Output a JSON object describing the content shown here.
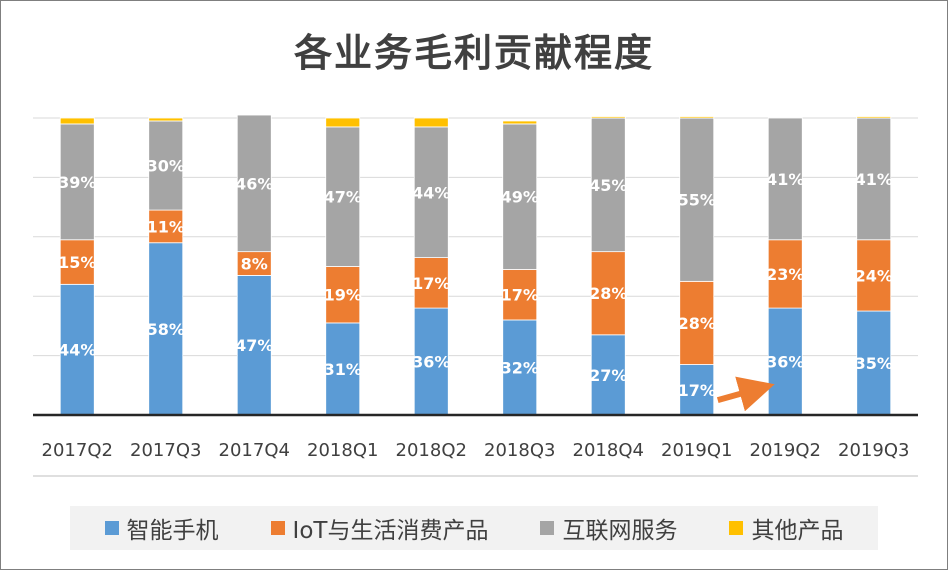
{
  "chart_data": {
    "type": "bar",
    "stacked": true,
    "title": "各业务毛利贡献程度",
    "xlabel": "",
    "ylabel": "",
    "ylim": [
      0,
      100
    ],
    "grid": true,
    "legend_position": "bottom",
    "categories": [
      "2017Q2",
      "2017Q3",
      "2017Q4",
      "2018Q1",
      "2018Q2",
      "2018Q3",
      "2018Q4",
      "2019Q1",
      "2019Q2",
      "2019Q3"
    ],
    "series": [
      {
        "name": "智能手机",
        "color": "#5b9bd5",
        "values": [
          44,
          58,
          47,
          31,
          36,
          32,
          27,
          17,
          36,
          35
        ],
        "labels": [
          "44%",
          "58%",
          "47%",
          "31%",
          "36%",
          "32%",
          "27%",
          "17%",
          "36%",
          "35%"
        ]
      },
      {
        "name": "IoT与生活消费产品",
        "color": "#ed7d31",
        "values": [
          15,
          11,
          8,
          19,
          17,
          17,
          28,
          28,
          23,
          24
        ],
        "labels": [
          "15%",
          "11%",
          "8%",
          "19%",
          "17%",
          "17%",
          "28%",
          "28%",
          "23%",
          "24%"
        ]
      },
      {
        "name": "互联网服务",
        "color": "#a5a5a5",
        "values": [
          39,
          30,
          46,
          47,
          44,
          49,
          45,
          55,
          41,
          41
        ],
        "labels": [
          "39%",
          "30%",
          "46%",
          "47%",
          "44%",
          "49%",
          "45%",
          "55%",
          "41%",
          "41%"
        ]
      },
      {
        "name": "其他产品",
        "color": "#ffc000",
        "values": [
          2,
          1,
          0,
          3,
          3,
          1,
          0.5,
          0.5,
          0,
          0.5
        ],
        "labels": [
          "",
          "",
          "",
          "",
          "",
          "",
          "",
          "",
          "",
          ""
        ]
      }
    ],
    "annotations": [
      {
        "type": "arrow",
        "color": "#ed7d31",
        "from_category": "2019Q1",
        "to_category": "2019Q2",
        "from_value": 5,
        "to_value": 9
      }
    ]
  }
}
